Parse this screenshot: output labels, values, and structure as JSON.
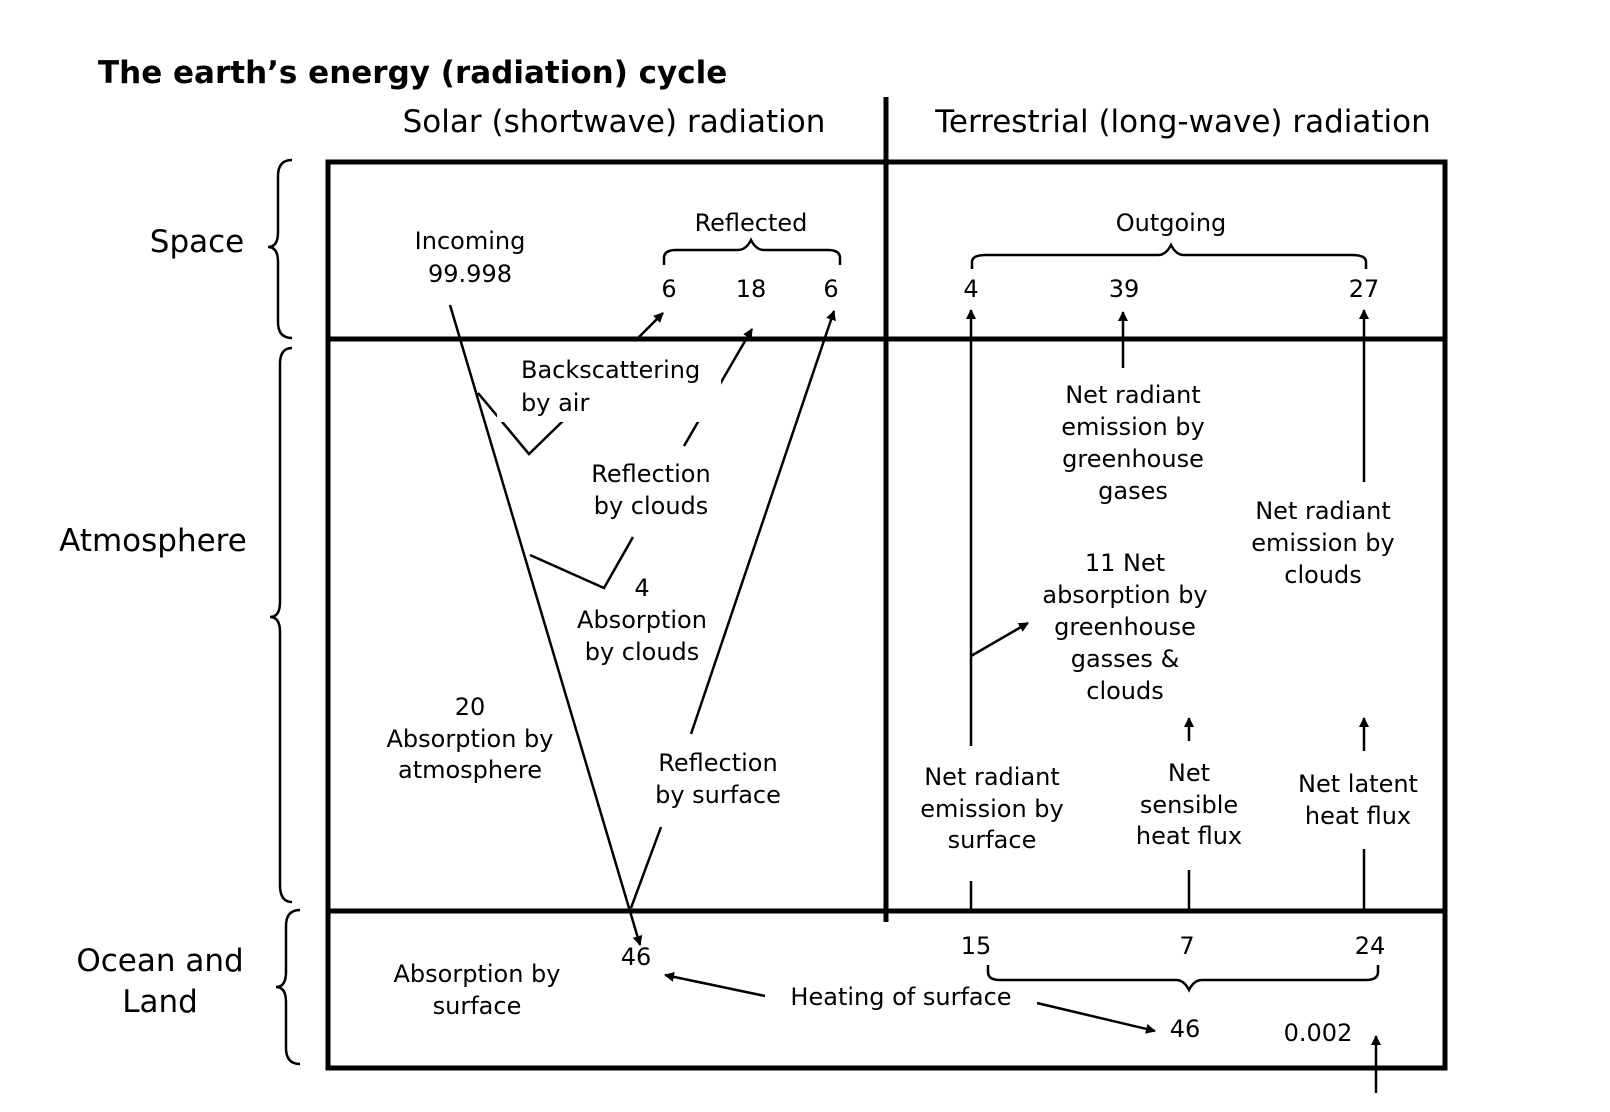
{
  "title": "The earth’s energy (radiation) cycle",
  "columns": {
    "solar": "Solar (shortwave) radiation",
    "terrestrial": "Terrestrial (long-wave) radiation"
  },
  "zones": {
    "space": "Space",
    "atmosphere": "Atmosphere",
    "ocean_land": [
      "Ocean and",
      "Land"
    ]
  },
  "solar": {
    "incoming_label": "Incoming",
    "incoming_value": "99.998",
    "reflected_label": "Reflected",
    "reflected_values": [
      "6",
      "18",
      "6"
    ],
    "backscattering": [
      "Backscattering",
      "by air"
    ],
    "reflection_clouds": [
      "Reflection",
      "by clouds"
    ],
    "absorption_clouds": [
      "4",
      "Absorption",
      "by clouds"
    ],
    "absorption_atmosphere": [
      "20",
      "Absorption by",
      "atmosphere"
    ],
    "reflection_surface": [
      "Reflection",
      "by surface"
    ],
    "absorption_surface": [
      "Absorption by",
      "surface"
    ],
    "surface_value": "46"
  },
  "terrestrial": {
    "outgoing_label": "Outgoing",
    "outgoing_values": [
      "4",
      "39",
      "27"
    ],
    "greenhouse_emission": [
      "Net radiant",
      "emission by",
      "greenhouse",
      "gases"
    ],
    "cloud_emission": [
      "Net radiant",
      "emission by",
      "clouds"
    ],
    "net_absorption": [
      "11 Net",
      "absorption by",
      "greenhouse",
      "gasses &",
      "clouds"
    ],
    "surface_emission": [
      "Net radiant",
      "emission by",
      "surface"
    ],
    "sensible_heat": [
      "Net",
      "sensible",
      "heat flux"
    ],
    "latent_heat": [
      "Net latent",
      "heat flux"
    ],
    "surface_values": [
      "15",
      "7",
      "24"
    ],
    "heating_label": "Heating of surface",
    "heating_value": "46",
    "geothermal_value": "0.002"
  }
}
